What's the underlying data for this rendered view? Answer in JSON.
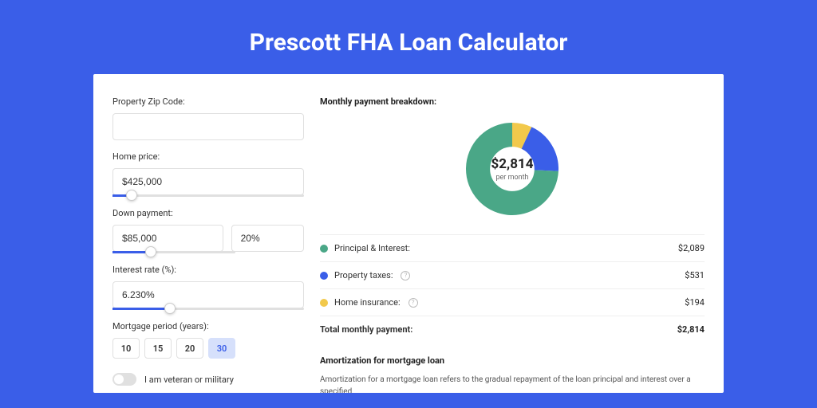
{
  "title": "Prescott FHA Loan Calculator",
  "colors": {
    "page_bg": "#3a5ee8",
    "card_bg": "#ffffff",
    "primary": "#3a5ee8",
    "principal": "#4aa787",
    "taxes": "#3a5ee8",
    "insurance": "#f2c94c"
  },
  "form": {
    "zip_label": "Property Zip Code:",
    "zip_value": "",
    "home_price_label": "Home price:",
    "home_price_value": "$425,000",
    "home_price_slider_pct": 10,
    "down_label": "Down payment:",
    "down_value": "$85,000",
    "down_pct": "20%",
    "down_slider_pct": 20,
    "rate_label": "Interest rate (%):",
    "rate_value": "6.230%",
    "rate_slider_pct": 30,
    "period_label": "Mortgage period (years):",
    "periods": [
      "10",
      "15",
      "20",
      "30"
    ],
    "period_active": "30",
    "veteran_label": "I am veteran or military"
  },
  "breakdown": {
    "heading": "Monthly payment breakdown:",
    "donut": {
      "type": "donut",
      "values": [
        2089,
        531,
        194
      ],
      "colors": [
        "#4aa787",
        "#3a5ee8",
        "#f2c94c"
      ],
      "thickness_ratio": 0.26,
      "center_amount": "$2,814",
      "center_sub": "per month"
    },
    "rows": [
      {
        "label": "Principal & Interest:",
        "dot": "#4aa787",
        "value": "$2,089",
        "help": false
      },
      {
        "label": "Property taxes:",
        "dot": "#3a5ee8",
        "value": "$531",
        "help": true
      },
      {
        "label": "Home insurance:",
        "dot": "#f2c94c",
        "value": "$194",
        "help": true
      }
    ],
    "total_label": "Total monthly payment:",
    "total_value": "$2,814"
  },
  "amort": {
    "heading": "Amortization for mortgage loan",
    "body": "Amortization for a mortgage loan refers to the gradual repayment of the loan principal and interest over a specified"
  }
}
